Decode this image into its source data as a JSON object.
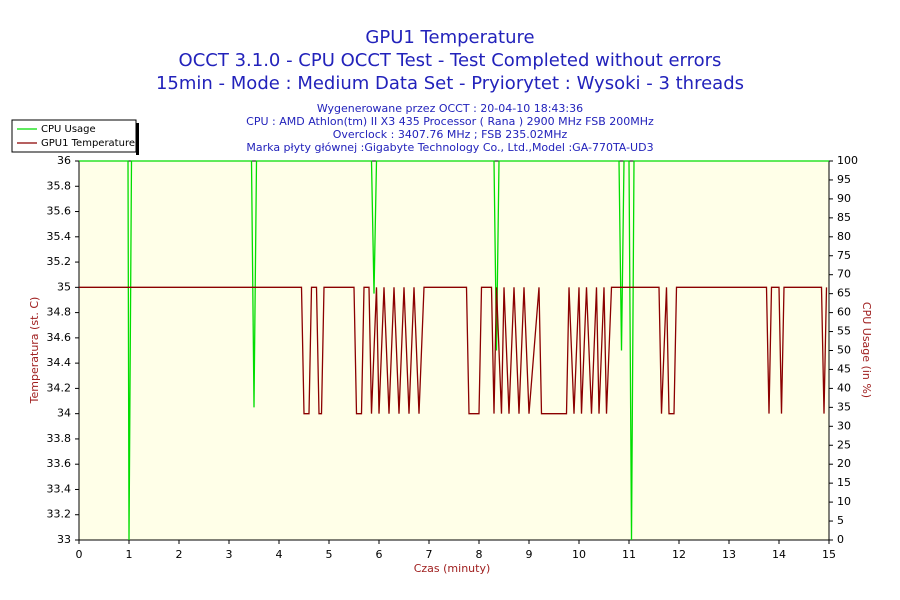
{
  "chart_data": {
    "type": "line",
    "title": [
      "GPU1 Temperature",
      "OCCT 3.1.0 - CPU OCCT Test - Test Completed without errors",
      "15min - Mode : Medium Data Set - Pryiorytet : Wysoki - 3 threads"
    ],
    "subtitle": [
      "Wygenerowane przez OCCT : 20-04-10 18:43:36",
      "CPU : AMD Athlon(tm) II X3 435 Processor ( Rana ) 2900 MHz FSB 200MHz",
      "Overclock : 3407.76 MHz ; FSB 235.02MHz",
      "Marka płyty głównej :Gigabyte Technology Co., Ltd.,Model :GA-770TA-UD3"
    ],
    "xlabel": "Czas (minuty)",
    "ylabel": "Temperatura (st. C)",
    "y2label": "CPU Usage (in %)",
    "xlim": [
      0,
      15
    ],
    "xticks": [
      0,
      1,
      2,
      3,
      4,
      5,
      6,
      7,
      8,
      9,
      10,
      11,
      12,
      13,
      14,
      15
    ],
    "ylim": [
      33,
      36
    ],
    "yticks": [
      33,
      33.2,
      33.4,
      33.6,
      33.8,
      34,
      34.2,
      34.4,
      34.6,
      34.8,
      35,
      35.2,
      35.4,
      35.6,
      35.8,
      36
    ],
    "y2lim": [
      0,
      100
    ],
    "y2ticks": [
      0,
      5,
      10,
      15,
      20,
      25,
      30,
      35,
      40,
      45,
      50,
      55,
      60,
      65,
      70,
      75,
      80,
      85,
      90,
      95,
      100
    ],
    "legend": "top-left",
    "series": [
      {
        "name": "CPU Usage",
        "color": "#00dd00",
        "axis": "y2",
        "x": [
          0,
          0.98,
          1.0,
          1.05,
          3.45,
          3.5,
          3.55,
          5.85,
          5.9,
          5.95,
          8.3,
          8.35,
          8.4,
          10.8,
          10.85,
          10.9,
          11.0,
          11.05,
          11.1,
          15
        ],
        "values": [
          100,
          100,
          0,
          100,
          100,
          35,
          100,
          100,
          65,
          100,
          100,
          50,
          100,
          100,
          50,
          100,
          100,
          0,
          100,
          100
        ]
      },
      {
        "name": "GPU1 Temperature",
        "color": "#8b0000",
        "x": [
          0,
          4.45,
          4.5,
          4.6,
          4.65,
          4.75,
          4.8,
          4.85,
          4.9,
          5.5,
          5.55,
          5.65,
          5.7,
          5.8,
          5.85,
          5.95,
          6.0,
          6.1,
          6.2,
          6.3,
          6.4,
          6.5,
          6.6,
          6.7,
          6.8,
          6.9,
          7.75,
          7.8,
          8.0,
          8.05,
          8.25,
          8.3,
          8.35,
          8.45,
          8.5,
          8.6,
          8.7,
          8.8,
          8.9,
          9.0,
          9.2,
          9.25,
          9.75,
          9.8,
          9.9,
          10.0,
          10.05,
          10.15,
          10.25,
          10.35,
          10.4,
          10.5,
          10.55,
          10.65,
          11.6,
          11.65,
          11.75,
          11.8,
          11.9,
          11.95,
          13.75,
          13.8,
          13.85,
          14.0,
          14.05,
          14.1,
          14.85,
          14.9,
          14.95
        ],
        "values": [
          35,
          35,
          34,
          34,
          35,
          35,
          34,
          34,
          35,
          35,
          34,
          34,
          35,
          35,
          34,
          35,
          34,
          35,
          34,
          35,
          34,
          35,
          34,
          35,
          34,
          35,
          35,
          34,
          34,
          35,
          35,
          34,
          35,
          34,
          35,
          34,
          35,
          34,
          35,
          34,
          35,
          34,
          34,
          35,
          34,
          35,
          34,
          35,
          34,
          35,
          34,
          35,
          34,
          35,
          35,
          34,
          35,
          34,
          34,
          35,
          35,
          34,
          35,
          35,
          34,
          35,
          35,
          34,
          35
        ]
      }
    ]
  }
}
